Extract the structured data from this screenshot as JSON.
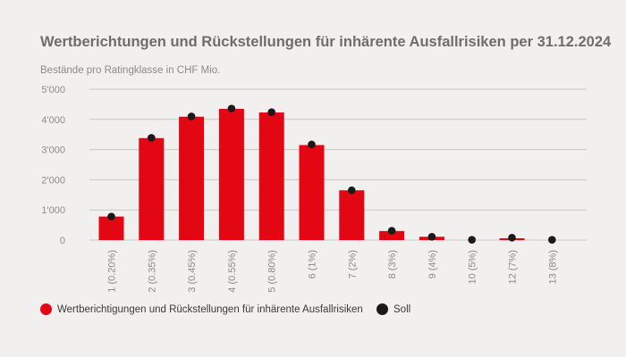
{
  "title": "Wertberichtungen und Rückstellungen für inhärente Ausfallrisiken per 31.12.2024",
  "subtitle": "Bestände pro Ratingklasse in CHF Mio.",
  "colors": {
    "bar": "#e30613",
    "soll": "#1a1a1a",
    "grid": "#c9c6c3"
  },
  "chart_data": {
    "type": "bar",
    "categories": [
      "1 (0.20%)",
      "2 (0.35%)",
      "3 (0.45%)",
      "4 (0.55%)",
      "5 (0.80%)",
      "6 (1%)",
      "7 (2%)",
      "8 (3%)",
      "9 (4%)",
      "10 (5%)",
      "12 (7%)",
      "13 (8%)"
    ],
    "series": [
      {
        "name": "Wertberichtigungen und Rückstellungen für inhärente Ausfallrisiken",
        "kind": "bar",
        "values": [
          780,
          3380,
          4090,
          4350,
          4230,
          3150,
          1650,
          300,
          110,
          0,
          60,
          0
        ]
      },
      {
        "name": "Soll",
        "kind": "dot",
        "values": [
          780,
          3390,
          4100,
          4360,
          4240,
          3170,
          1650,
          310,
          110,
          10,
          80,
          10
        ]
      }
    ],
    "yticks": [
      0,
      1000,
      2000,
      3000,
      4000,
      5000
    ],
    "ytick_labels": [
      "0",
      "1'000",
      "2'000",
      "3'000",
      "4'000",
      "5'000"
    ],
    "ylim": [
      0,
      5000
    ],
    "grid": true,
    "legend_position": "bottom"
  }
}
